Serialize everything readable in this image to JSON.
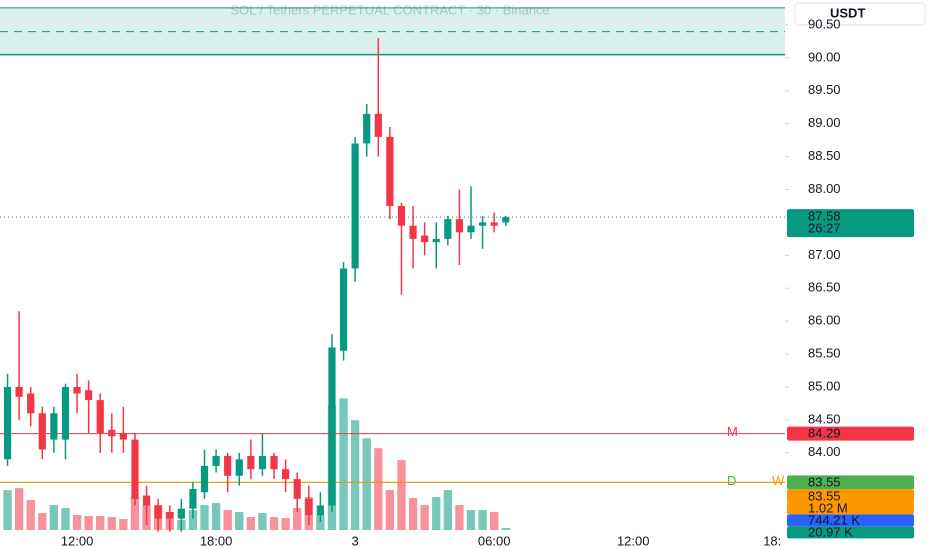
{
  "chart_data": {
    "type": "candlestick",
    "title": "SOL / Tethers PERPETUAL CONTRACT · 30 · Binance",
    "currency": "USDT",
    "ylim": [
      82.75,
      90.88
    ],
    "yticks": [
      {
        "value": 90.5,
        "label": "90.50"
      },
      {
        "value": 90,
        "label": "90.00"
      },
      {
        "value": 89.5,
        "label": "89.50"
      },
      {
        "value": 89,
        "label": "89.00"
      },
      {
        "value": 88.5,
        "label": "88.50"
      },
      {
        "value": 88,
        "label": "88.00"
      },
      {
        "value": 87,
        "label": "87.00"
      },
      {
        "value": 86.5,
        "label": "86.50"
      },
      {
        "value": 86,
        "label": "86.00"
      },
      {
        "value": 85.5,
        "label": "85.50"
      },
      {
        "value": 85,
        "label": "85.00"
      },
      {
        "value": 84.5,
        "label": "84.50"
      },
      {
        "value": 84,
        "label": "84.00"
      }
    ],
    "xlim": [
      -0.65,
      67.1
    ],
    "xticks": [
      {
        "value": 6,
        "label": "12:00"
      },
      {
        "value": 18,
        "label": "18:00"
      },
      {
        "value": 30,
        "label": "3"
      },
      {
        "value": 42,
        "label": "06:00"
      },
      {
        "value": 54,
        "label": "12:00"
      },
      {
        "value": 66,
        "label": "18:"
      }
    ],
    "open": [
      83.9,
      85.0,
      84.9,
      84.6,
      84.2,
      84.2,
      85.0,
      84.95,
      84.8,
      84.35,
      84.3,
      84.2,
      83.35,
      83.2,
      83.1,
      83.0,
      83.15,
      83.4,
      83.8,
      83.95,
      83.65,
      83.95,
      83.75,
      83.95,
      83.75,
      83.6,
      83.3,
      83.05,
      83.2,
      85.55,
      86.8,
      88.7,
      89.15,
      88.8,
      87.75,
      87.45,
      87.3,
      87.2,
      87.25,
      87.55,
      87.35,
      87.45,
      87.5,
      87.5
    ],
    "high": [
      85.2,
      86.15,
      85.0,
      84.7,
      84.7,
      85.05,
      85.2,
      85.1,
      84.9,
      84.6,
      84.7,
      84.3,
      83.5,
      83.3,
      83.2,
      83.3,
      83.55,
      84.05,
      84.05,
      84.0,
      84.0,
      84.2,
      84.3,
      84.0,
      83.9,
      83.7,
      83.5,
      83.4,
      85.8,
      86.9,
      88.8,
      89.3,
      90.3,
      88.95,
      87.8,
      87.75,
      87.5,
      87.5,
      87.6,
      88.0,
      88.05,
      87.6,
      87.65,
      87.6
    ],
    "low": [
      83.8,
      84.5,
      84.4,
      83.9,
      84.0,
      83.9,
      84.6,
      84.3,
      84.0,
      84.0,
      84.0,
      83.2,
      82.9,
      82.8,
      82.8,
      82.8,
      83.0,
      83.3,
      83.7,
      83.4,
      83.5,
      83.6,
      83.65,
      83.6,
      83.4,
      83.1,
      82.9,
      82.95,
      83.1,
      85.4,
      86.6,
      88.5,
      88.5,
      87.55,
      86.4,
      86.8,
      87.0,
      86.8,
      87.15,
      86.85,
      87.25,
      87.1,
      87.35,
      87.45
    ],
    "close": [
      85.0,
      84.85,
      84.6,
      84.05,
      84.6,
      85.0,
      84.9,
      84.8,
      84.3,
      84.25,
      84.2,
      83.3,
      83.2,
      83.0,
      83.0,
      83.15,
      83.45,
      83.8,
      83.95,
      83.65,
      83.9,
      83.75,
      83.95,
      83.75,
      83.6,
      83.3,
      83.05,
      83.2,
      85.6,
      86.8,
      88.7,
      89.15,
      88.8,
      87.75,
      87.45,
      87.25,
      87.2,
      87.25,
      87.55,
      87.35,
      87.45,
      87.5,
      87.45,
      87.58
    ],
    "volume": [
      1280000,
      1344000,
      960000,
      544000,
      800000,
      704000,
      480000,
      448000,
      448000,
      416000,
      352000,
      1056000,
      800000,
      800000,
      576000,
      320000,
      640000,
      800000,
      864000,
      640000,
      576000,
      416000,
      544000,
      416000,
      384000,
      704000,
      1056000,
      480000,
      4000000,
      4224000,
      3520000,
      2944000,
      2624000,
      1280000,
      2240000,
      1024000,
      800000,
      1056000,
      1280000,
      800000,
      640000,
      640000,
      576000,
      64000
    ],
    "vlim": [
      0,
      17000000
    ],
    "up_color": "#089981",
    "down_color": "#f23645",
    "last_price": 87.58,
    "countdown": "26:27",
    "zone": {
      "from": 90.05,
      "to": 90.76,
      "mid": 90.4,
      "color": "#089981"
    },
    "levels": [
      {
        "name": "M",
        "value": 84.29,
        "color": "#f23645"
      },
      {
        "name": "D",
        "value": 83.55,
        "color": "#4caf50"
      },
      {
        "name": "W",
        "value": 83.55,
        "color": "#ff9800"
      }
    ],
    "indicator_labels": [
      {
        "label": "1.02 M",
        "color": "#ff9800"
      },
      {
        "label": "744.21 K",
        "color": "#2962ff"
      },
      {
        "label": "20.97 K",
        "color": "#089981"
      }
    ]
  }
}
